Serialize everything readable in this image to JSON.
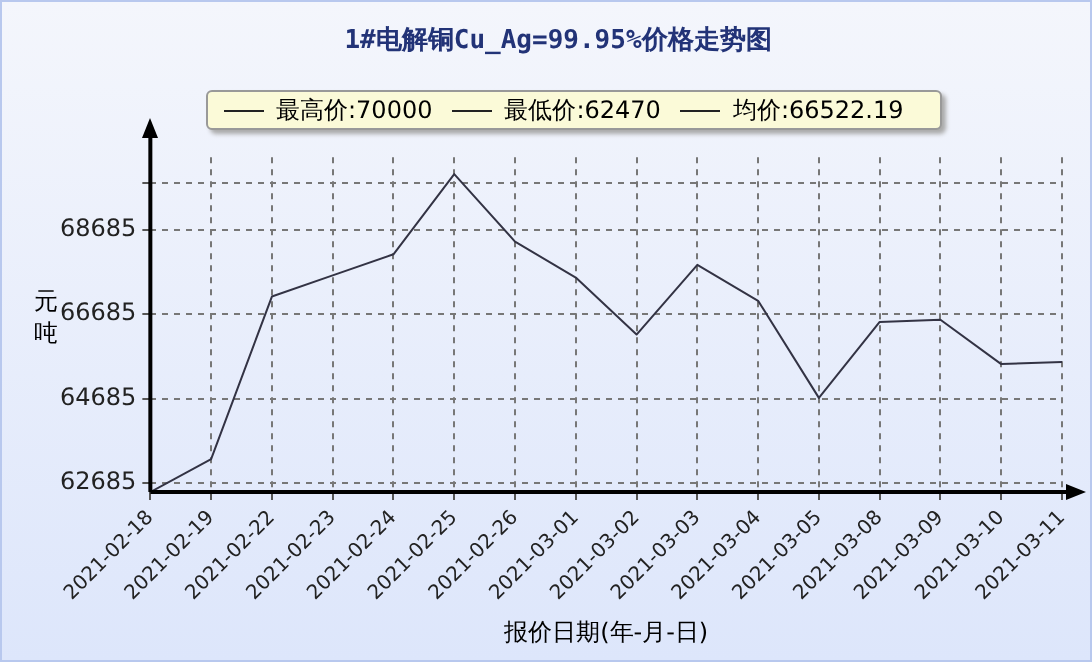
{
  "chart_data": {
    "type": "line",
    "title": "1#电解铜Cu_Ag=99.95%价格走势图",
    "xlabel": "报价日期(年-月-日)",
    "ylabel": "元吨",
    "categories": [
      "2021-02-18",
      "2021-02-19",
      "2021-02-22",
      "2021-02-23",
      "2021-02-24",
      "2021-02-25",
      "2021-02-26",
      "2021-03-01",
      "2021-03-02",
      "2021-03-03",
      "2021-03-04",
      "2021-03-05",
      "2021-03-08",
      "2021-03-09",
      "2021-03-10",
      "2021-03-11"
    ],
    "series": [
      {
        "color": "#333344",
        "values": [
          62470,
          63250,
          67100,
          67600,
          68100,
          70000,
          68400,
          67550,
          66200,
          67850,
          67000,
          64700,
          66500,
          66550,
          65500,
          65550
        ]
      }
    ],
    "annotations": [
      "最高价:70000",
      "最低价:62470",
      "均价:66522.19"
    ],
    "ylim": [
      62470,
      70400
    ],
    "yticks": [
      62685,
      64685,
      66685,
      68685,
      {
        "value": 69790,
        "label": null
      }
    ],
    "grid": true,
    "marker": "none",
    "line_style": "solid"
  }
}
